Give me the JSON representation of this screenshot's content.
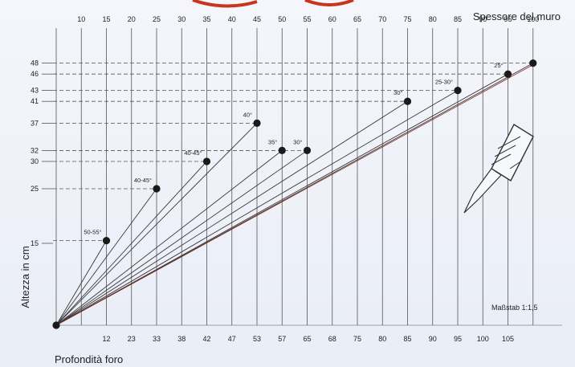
{
  "chart_data": {
    "type": "line",
    "title_top": "Spessore del muro",
    "ylabel": "Altezza in cm",
    "xlabel": "Profondità foro",
    "scale_note": "Maßstab 1:1,5",
    "top_ticks": [
      "10",
      "15",
      "20",
      "25",
      "30",
      "35",
      "40",
      "45",
      "50",
      "55",
      "60",
      "65",
      "70",
      "75",
      "80",
      "85",
      "90",
      "95",
      "100"
    ],
    "bottom_ticks": [
      "12",
      "23",
      "33",
      "38",
      "42",
      "47",
      "53",
      "57",
      "65",
      "68",
      "75",
      "80",
      "85",
      "90",
      "95",
      "100",
      "105"
    ],
    "y_ticks": [
      "48",
      "46",
      "43",
      "41",
      "37",
      "32",
      "30",
      "25",
      "15"
    ],
    "origin": [
      0,
      0
    ],
    "points": [
      {
        "wall": 15,
        "depth": 12,
        "height": 15.5,
        "angle": "50-55°"
      },
      {
        "wall": 25,
        "depth": 23,
        "height": 25,
        "angle": "40-45°"
      },
      {
        "wall": 35,
        "depth": 38,
        "height": 30,
        "angle": "40-45°"
      },
      {
        "wall": 45,
        "depth": 47,
        "height": 37,
        "angle": "40°"
      },
      {
        "wall": 50,
        "depth": 53,
        "height": 32,
        "angle": "35°"
      },
      {
        "wall": 55,
        "depth": 57,
        "height": 32,
        "angle": "30°"
      },
      {
        "wall": 75,
        "depth": 80,
        "height": 41,
        "angle": "30°"
      },
      {
        "wall": 85,
        "depth": 90,
        "height": 43,
        "angle": "25-30°"
      },
      {
        "wall": 95,
        "depth": 100,
        "height": 46,
        "angle": "25°"
      },
      {
        "wall": 100,
        "depth": 105,
        "height": 48,
        "angle": ""
      }
    ],
    "colors": {
      "line": "#3a3a3a",
      "grid": "#555555",
      "dash": "#555555",
      "marker": "#1a1a1a",
      "accent": "#c8341e"
    }
  }
}
